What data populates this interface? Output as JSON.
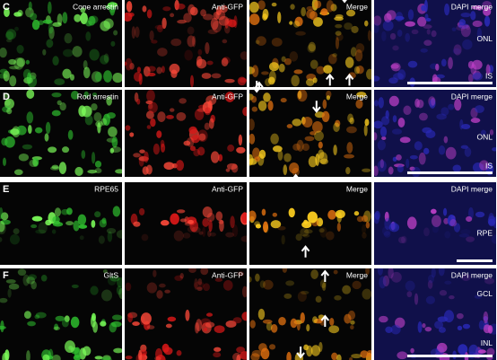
{
  "rows": [
    {
      "letter": "C",
      "labels": [
        "Cone arrestin",
        "Anti-GFP",
        "Merge",
        "DAPI merge"
      ],
      "layers": [
        "ONL",
        "IS"
      ]
    },
    {
      "letter": "D",
      "labels": [
        "Rod arrestin",
        "Anti-GFP",
        "Merge",
        "DAPI merge"
      ],
      "layers": [
        "ONL",
        "IS"
      ]
    },
    {
      "letter": "E",
      "labels": [
        "RPE65",
        "Anti-GFP",
        "Merge",
        "DAPI merge"
      ],
      "layers": [
        "RPE"
      ]
    },
    {
      "letter": "F",
      "labels": [
        "GltS",
        "Anti-GFP",
        "Merge",
        "DAPI merge"
      ],
      "layers": [
        "GCL",
        "INL"
      ]
    }
  ]
}
